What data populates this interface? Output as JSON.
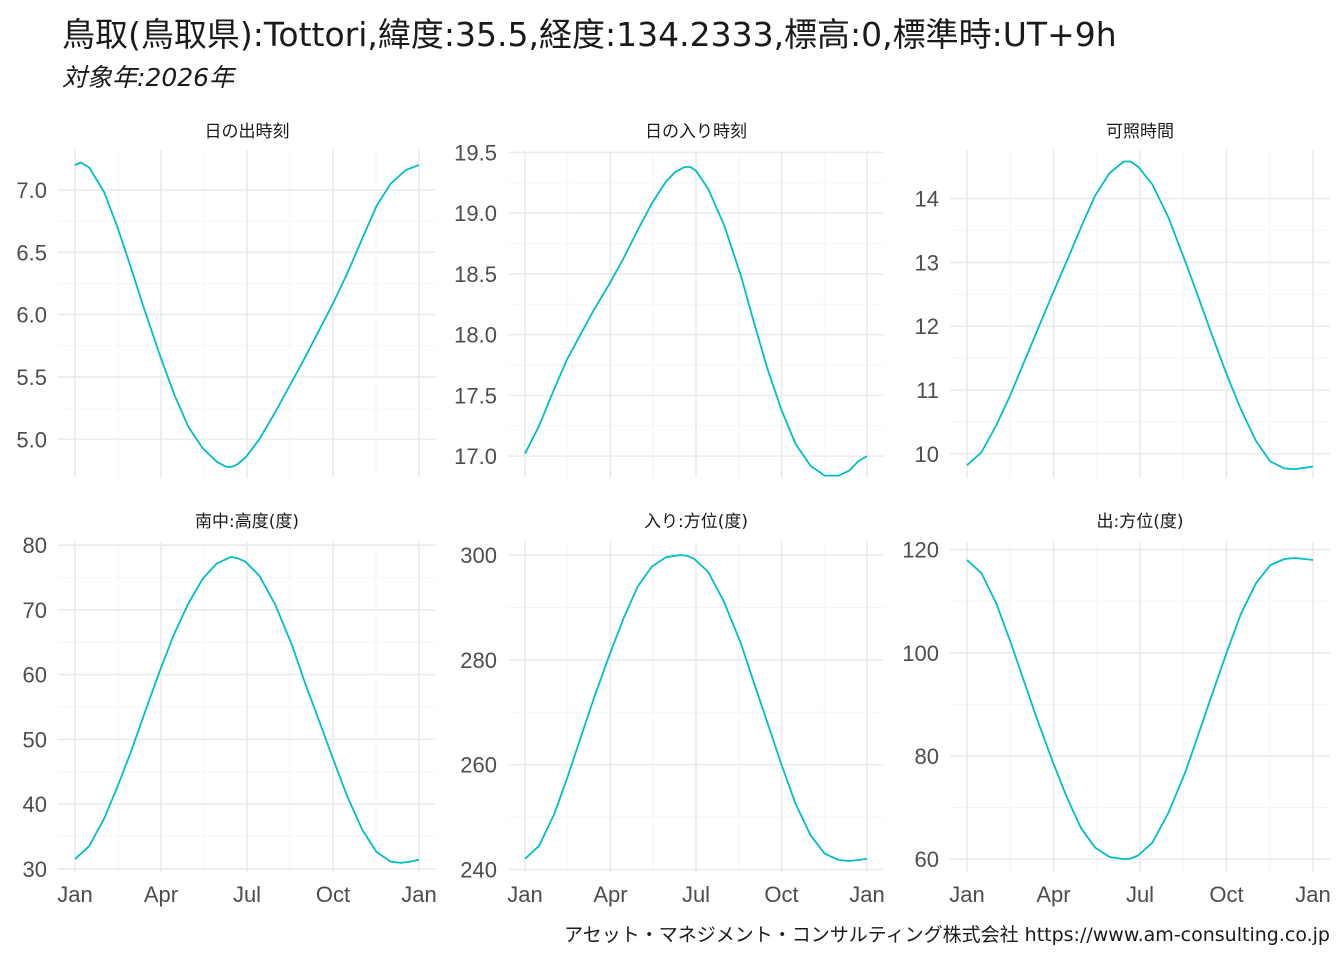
{
  "title": "鳥取(鳥取県):Tottori,緯度:35.5,経度:134.2333,標高:0,標準時:UT+9h",
  "subtitle": "対象年:2026年",
  "caption": "アセット・マネジメント・コンサルティング株式会社 https://www.am-consulting.co.jp",
  "colors": {
    "line": "#00BFC4",
    "grid_major": "#EBEBEB",
    "grid_minor": "#F5F5F5"
  },
  "chart_data": [
    {
      "type": "line",
      "title": "日の出時刻",
      "x_ticks": [
        "Jan",
        "Apr",
        "Jul",
        "Oct",
        "Jan"
      ],
      "xlim": [
        0,
        364
      ],
      "y_ticks": [
        5.0,
        5.5,
        6.0,
        6.5,
        7.0
      ],
      "ylim": [
        4.69,
        7.32
      ],
      "series": [
        {
          "x": [
            0,
            6,
            15,
            31,
            45,
            59,
            73,
            90,
            105,
            120,
            135,
            150,
            160,
            166,
            172,
            181,
            195,
            212,
            230,
            243,
            258,
            273,
            288,
            304,
            319,
            334,
            350,
            364
          ],
          "values": [
            7.2,
            7.22,
            7.18,
            6.98,
            6.7,
            6.38,
            6.05,
            5.67,
            5.36,
            5.1,
            4.93,
            4.82,
            4.78,
            4.78,
            4.8,
            4.86,
            5.0,
            5.22,
            5.47,
            5.65,
            5.87,
            6.09,
            6.33,
            6.61,
            6.87,
            7.05,
            7.16,
            7.2
          ]
        }
      ]
    },
    {
      "type": "line",
      "title": "日の入り時刻",
      "x_ticks": [
        "Jan",
        "Apr",
        "Jul",
        "Oct",
        "Jan"
      ],
      "xlim": [
        0,
        364
      ],
      "y_ticks": [
        17.0,
        17.5,
        18.0,
        18.5,
        19.0,
        19.5
      ],
      "ylim": [
        16.82,
        19.52
      ],
      "series": [
        {
          "x": [
            0,
            15,
            31,
            45,
            59,
            73,
            90,
            105,
            120,
            135,
            150,
            160,
            170,
            176,
            182,
            195,
            212,
            230,
            243,
            258,
            273,
            288,
            304,
            319,
            334,
            345,
            355,
            364
          ],
          "values": [
            17.02,
            17.25,
            17.55,
            17.8,
            18.0,
            18.2,
            18.42,
            18.63,
            18.86,
            19.08,
            19.26,
            19.34,
            19.38,
            19.38,
            19.35,
            19.2,
            18.9,
            18.48,
            18.12,
            17.72,
            17.38,
            17.1,
            16.92,
            16.84,
            16.84,
            16.88,
            16.96,
            17.0
          ]
        }
      ]
    },
    {
      "type": "line",
      "title": "可照時間",
      "x_ticks": [
        "Jan",
        "Apr",
        "Jul",
        "Oct",
        "Jan"
      ],
      "xlim": [
        0,
        364
      ],
      "y_ticks": [
        10,
        11,
        12,
        13,
        14
      ],
      "ylim": [
        9.62,
        14.76
      ],
      "series": [
        {
          "x": [
            0,
            15,
            31,
            45,
            59,
            73,
            90,
            105,
            120,
            135,
            150,
            165,
            172,
            180,
            195,
            212,
            230,
            243,
            258,
            273,
            288,
            304,
            319,
            334,
            345,
            355,
            364
          ],
          "values": [
            9.82,
            10.02,
            10.45,
            10.9,
            11.4,
            11.9,
            12.5,
            13.02,
            13.55,
            14.05,
            14.4,
            14.58,
            14.58,
            14.5,
            14.22,
            13.7,
            13.0,
            12.47,
            11.85,
            11.25,
            10.7,
            10.2,
            9.88,
            9.77,
            9.76,
            9.78,
            9.8
          ]
        }
      ]
    },
    {
      "type": "line",
      "title": "南中:高度(度)",
      "x_ticks": [
        "Jan",
        "Apr",
        "Jul",
        "Oct",
        "Jan"
      ],
      "xlim": [
        0,
        364
      ],
      "y_ticks": [
        30,
        40,
        50,
        60,
        70,
        80
      ],
      "ylim": [
        29.5,
        80.5
      ],
      "series": [
        {
          "x": [
            0,
            15,
            31,
            45,
            59,
            73,
            90,
            105,
            120,
            135,
            150,
            165,
            172,
            180,
            195,
            212,
            230,
            243,
            258,
            273,
            288,
            304,
            319,
            334,
            345,
            355,
            364
          ],
          "values": [
            31.5,
            33.5,
            37.8,
            42.7,
            48.0,
            53.8,
            60.7,
            66.3,
            71.0,
            74.8,
            77.2,
            78.2,
            78.0,
            77.5,
            75.3,
            70.8,
            64.4,
            58.9,
            53.0,
            47.0,
            41.2,
            36.0,
            32.6,
            31.1,
            30.9,
            31.1,
            31.4
          ]
        }
      ]
    },
    {
      "type": "line",
      "title": "入り:方位(度)",
      "x_ticks": [
        "Jan",
        "Apr",
        "Jul",
        "Oct",
        "Jan"
      ],
      "xlim": [
        0,
        364
      ],
      "y_ticks": [
        240,
        260,
        280,
        300
      ],
      "ylim": [
        239.5,
        302.5
      ],
      "series": [
        {
          "x": [
            0,
            15,
            31,
            45,
            59,
            73,
            90,
            105,
            120,
            135,
            150,
            165,
            172,
            180,
            195,
            212,
            230,
            243,
            258,
            273,
            288,
            304,
            319,
            334,
            345,
            355,
            364
          ],
          "values": [
            242.0,
            244.5,
            250.5,
            257.5,
            265.0,
            272.5,
            281.0,
            288.0,
            294.0,
            297.8,
            299.6,
            300.0,
            299.9,
            299.3,
            296.8,
            291.0,
            283.0,
            276.0,
            268.0,
            260.0,
            252.5,
            246.5,
            243.0,
            241.8,
            241.6,
            241.8,
            242.0
          ]
        }
      ]
    },
    {
      "type": "line",
      "title": "出:方位(度)",
      "x_ticks": [
        "Jan",
        "Apr",
        "Jul",
        "Oct",
        "Jan"
      ],
      "xlim": [
        0,
        364
      ],
      "y_ticks": [
        60,
        80,
        100,
        120
      ],
      "ylim": [
        57.5,
        121.5
      ],
      "series": [
        {
          "x": [
            0,
            15,
            31,
            45,
            59,
            73,
            90,
            105,
            120,
            135,
            150,
            165,
            172,
            180,
            195,
            212,
            230,
            243,
            258,
            273,
            288,
            304,
            319,
            334,
            345,
            355,
            364
          ],
          "values": [
            118.0,
            115.5,
            109.5,
            102.5,
            95.0,
            87.5,
            79.0,
            72.0,
            66.0,
            62.2,
            60.4,
            60.0,
            60.1,
            60.7,
            63.2,
            69.0,
            77.0,
            84.0,
            92.0,
            100.0,
            107.5,
            113.5,
            117.0,
            118.2,
            118.4,
            118.2,
            118.0
          ]
        }
      ]
    }
  ]
}
